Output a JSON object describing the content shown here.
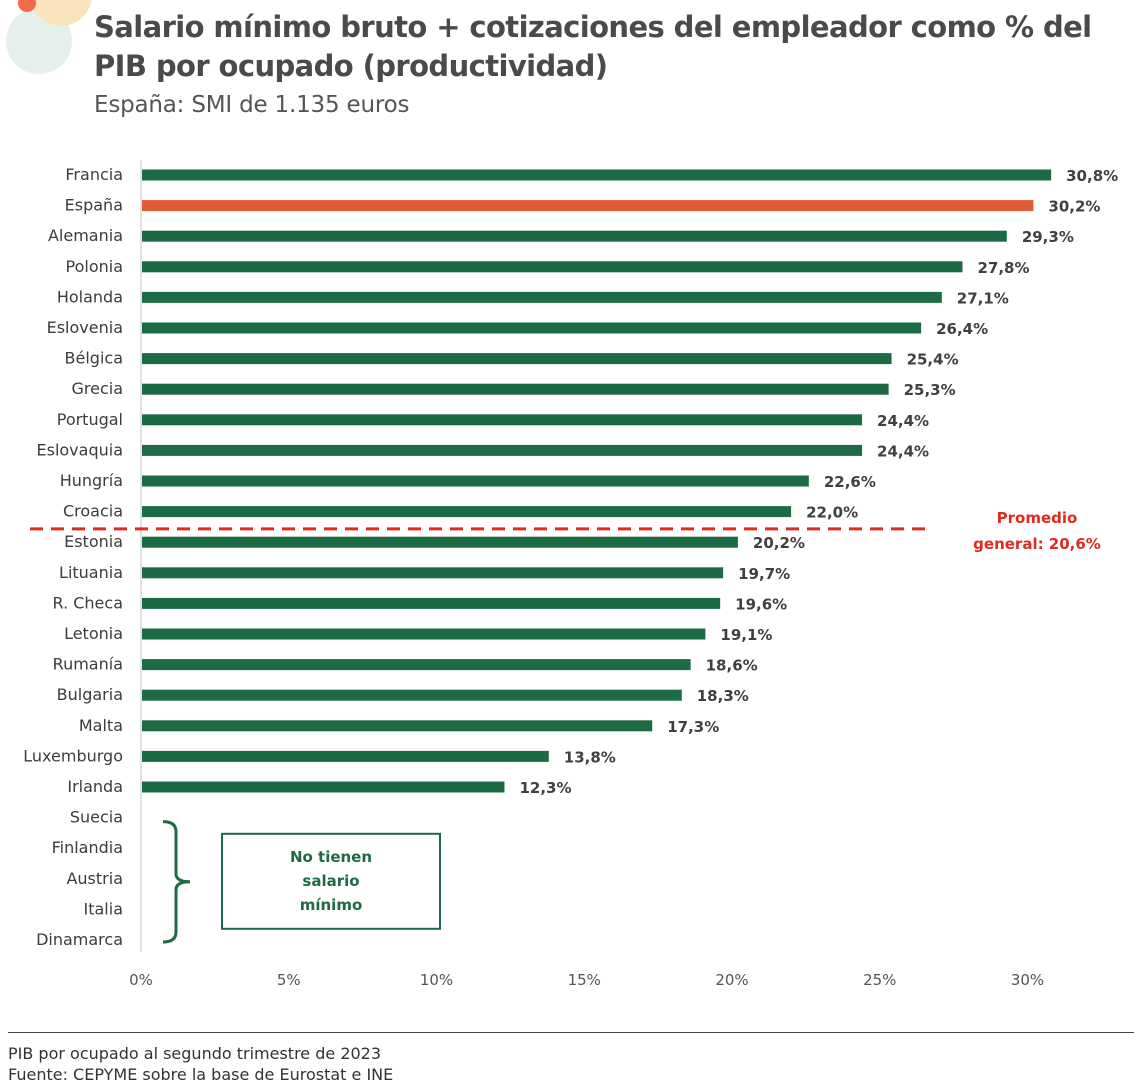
{
  "chart_data": {
    "type": "bar",
    "orientation": "horizontal",
    "title": "Salario mínimo bruto + cotizaciones del empleador como % del PIB por ocupado (productividad)",
    "subtitle": "España: SMI de 1.135 euros",
    "categories": [
      "Francia",
      "España",
      "Alemania",
      "Polonia",
      "Holanda",
      "Eslovenia",
      "Bélgica",
      "Grecia",
      "Portugal",
      "Eslovaquia",
      "Hungría",
      "Croacia",
      "Estonia",
      "Lituania",
      "R. Checa",
      "Letonia",
      "Rumanía",
      "Bulgaria",
      "Malta",
      "Luxemburgo",
      "Irlanda",
      "Suecia",
      "Finlandia",
      "Austria",
      "Italia",
      "Dinamarca"
    ],
    "values": [
      30.8,
      30.2,
      29.3,
      27.8,
      27.1,
      26.4,
      25.4,
      25.3,
      24.4,
      24.4,
      22.6,
      22.0,
      20.2,
      19.7,
      19.6,
      19.1,
      18.6,
      18.3,
      17.3,
      13.8,
      12.3,
      null,
      null,
      null,
      null,
      null
    ],
    "value_labels": [
      "30,8%",
      "30,2%",
      "29,3%",
      "27,8%",
      "27,1%",
      "26,4%",
      "25,4%",
      "25,3%",
      "24,4%",
      "24,4%",
      "22,6%",
      "22,0%",
      "20,2%",
      "19,7%",
      "19,6%",
      "19,1%",
      "18,6%",
      "18,3%",
      "17,3%",
      "13,8%",
      "12,3%",
      "",
      "",
      "",
      "",
      ""
    ],
    "highlight_category": "España",
    "xlim": [
      0,
      30
    ],
    "x_ticks": [
      0,
      5,
      10,
      15,
      20,
      25,
      30
    ],
    "x_tick_labels": [
      "0%",
      "5%",
      "10%",
      "15%",
      "20%",
      "25%",
      "30%"
    ],
    "reference_line": {
      "value": 20.6,
      "label_lines": [
        "Promedio",
        "general: 20,6%"
      ]
    },
    "no_data_note": {
      "categories": [
        "Suecia",
        "Finlandia",
        "Austria",
        "Italia",
        "Dinamarca"
      ],
      "text_lines": [
        "No tienen",
        "salario",
        "mínimo"
      ]
    },
    "colors": {
      "bar": "#1d6b45",
      "highlight": "#e05a3a",
      "reference_line": "#e02a20",
      "note": "#1d6b45"
    }
  },
  "footer": {
    "note": "PIB por ocupado al segundo trimestre de 2023",
    "source": "Fuente: CEPYME sobre la base de Eurostat e INE"
  }
}
